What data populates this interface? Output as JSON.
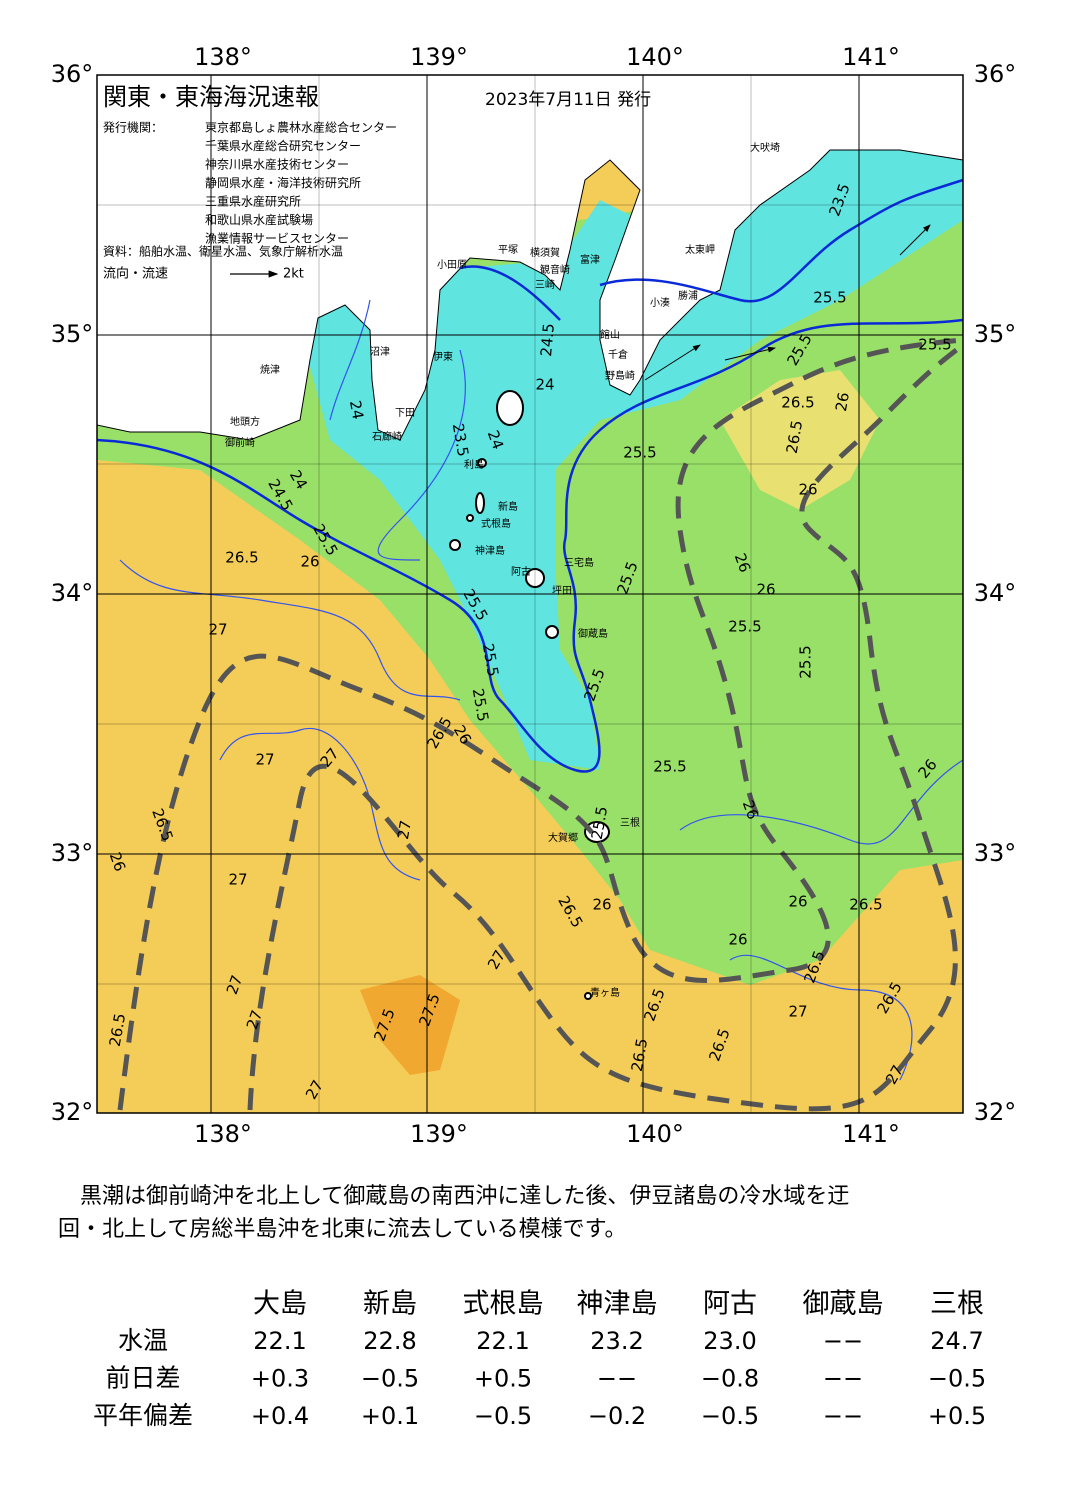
{
  "header": {
    "title": "関東・東海海況速報",
    "date": "2023年7月11日 発行"
  },
  "issuers": {
    "label": "発行機関：",
    "items": [
      "東京都島しょ農林水産総合センター",
      "千葉県水産総合研究センター",
      "神奈川県水産技術センター",
      "静岡県水産・海洋技術研究所",
      "三重県水産研究所",
      "和歌山県水産試験場",
      "漁業情報サービスセンター"
    ]
  },
  "sources": "資料：船舶水温、衛星水温、気象庁解析水温",
  "legend": {
    "label": "流向・流速",
    "scale": "2kt"
  },
  "axes": {
    "lon": [
      "138°",
      "139°",
      "140°",
      "141°"
    ],
    "lat": [
      "36°",
      "35°",
      "34°",
      "33°",
      "32°"
    ]
  },
  "places": [
    "大吠埼",
    "太東岬",
    "勝浦",
    "小湊",
    "富津",
    "横須賀",
    "平塚",
    "小田原",
    "観音崎",
    "三崎",
    "館山",
    "千倉",
    "野島崎",
    "沼津",
    "伊東",
    "焼津",
    "下田",
    "石廊崎",
    "地頭方",
    "御前崎",
    "利島",
    "新島",
    "式根島",
    "神津島",
    "三宅島",
    "阿古",
    "坪田",
    "御蔵島",
    "大賀郷",
    "三根",
    "青ヶ島"
  ],
  "contour_labels": [
    "23.5",
    "25.5",
    "25.5",
    "25.5",
    "24.5",
    "24",
    "23.5",
    "24",
    "24",
    "25.5",
    "26.5",
    "26.5",
    "26",
    "26",
    "24",
    "24.5",
    "25.5",
    "26",
    "26.5",
    "27",
    "26",
    "25.5",
    "25.5",
    "26",
    "25.5",
    "25.5",
    "25.5",
    "25.5",
    "26.5",
    "26",
    "25.5",
    "25.5",
    "26",
    "27",
    "27",
    "26.5",
    "27",
    "27",
    "26",
    "25.5",
    "26",
    "26",
    "26.5",
    "26",
    "26.5",
    "26",
    "26.5",
    "27",
    "27",
    "26.5",
    "26.5",
    "27",
    "27.5",
    "27.5",
    "26.5",
    "27",
    "26.5",
    "26.5",
    "27",
    "27"
  ],
  "description": [
    "　黒潮は御前崎沖を北上して御蔵島の南西沖に達した後、伊豆諸島の冷水域を迂",
    "回・北上して房総半島沖を北東に流去している模様です。"
  ],
  "table": {
    "columns": [
      "大島",
      "新島",
      "式根島",
      "神津島",
      "阿古",
      "御蔵島",
      "三根"
    ],
    "rows": [
      {
        "label": "水温",
        "cells": [
          "22.1",
          "22.8",
          "22.1",
          "23.2",
          "23.0",
          "−−",
          "24.7"
        ]
      },
      {
        "label": "前日差",
        "cells": [
          "+0.3",
          "−0.5",
          "+0.5",
          "−−",
          "−0.8",
          "−−",
          "−0.5"
        ]
      },
      {
        "label": "平年偏差",
        "cells": [
          "+0.4",
          "+0.1",
          "−0.5",
          "−0.2",
          "−0.5",
          "−−",
          "+0.5"
        ]
      }
    ]
  }
}
